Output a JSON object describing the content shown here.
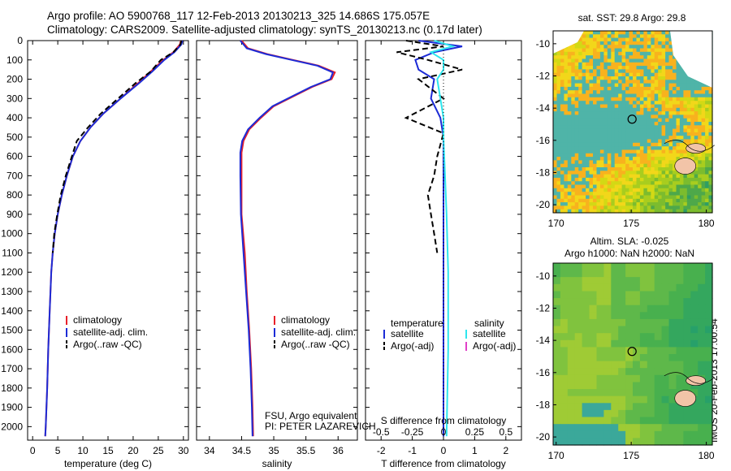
{
  "header": {
    "line1": "Argo profile: AO 5900768_117 12-Feb-2013 20130213_325 14.686S 175.057E",
    "line2": "Climatology: CARS2009. Satellite-adjusted climatology: synTS_20130213.nc (0.17d later)"
  },
  "timestamp": "IMOS 20-Feb-2013 17:00:54",
  "colors": {
    "climatology": "#e8202a",
    "satellite": "#1c2bd6",
    "argo": "#000000",
    "sat_salinity": "#2ee6ee",
    "argo_salinity": "#e040c8"
  },
  "chart_data": [
    {
      "type": "line",
      "panel": "temperature",
      "xlabel": "temperature (deg C)",
      "ylabel": "",
      "xlim": [
        -1,
        31
      ],
      "ylim": [
        2070,
        0
      ],
      "xticks": [
        0,
        5,
        10,
        15,
        20,
        25,
        30
      ],
      "yticks": [
        0,
        100,
        200,
        300,
        400,
        500,
        600,
        700,
        800,
        900,
        1000,
        1100,
        1200,
        1300,
        1400,
        1500,
        1600,
        1700,
        1800,
        1900,
        2000
      ],
      "legend": [
        "climatology",
        "satellite-adj. clim.",
        "Argo(..raw -QC)"
      ],
      "series": [
        {
          "name": "climatology",
          "style": "solid",
          "color": "#e8202a",
          "points": [
            [
              29.5,
              0
            ],
            [
              29.3,
              20
            ],
            [
              28,
              60
            ],
            [
              26,
              100
            ],
            [
              23.5,
              160
            ],
            [
              21,
              220
            ],
            [
              17.5,
              300
            ],
            [
              14,
              380
            ],
            [
              11.5,
              450
            ],
            [
              9.5,
              520
            ],
            [
              8,
              600
            ],
            [
              6.8,
              700
            ],
            [
              5.8,
              800
            ],
            [
              5,
              900
            ],
            [
              4.4,
              1000
            ],
            [
              4,
              1100
            ],
            [
              3.7,
              1200
            ],
            [
              3.4,
              1400
            ],
            [
              3.1,
              1600
            ],
            [
              2.9,
              1800
            ],
            [
              2.6,
              2000
            ],
            [
              2.5,
              2050
            ]
          ]
        },
        {
          "name": "satellite-adj. clim.",
          "style": "solid",
          "color": "#1c2bd6",
          "points": [
            [
              29.8,
              0
            ],
            [
              29.6,
              20
            ],
            [
              28.2,
              60
            ],
            [
              26.2,
              100
            ],
            [
              23.8,
              160
            ],
            [
              21.2,
              220
            ],
            [
              17.5,
              300
            ],
            [
              14,
              380
            ],
            [
              11.5,
              450
            ],
            [
              9.5,
              520
            ],
            [
              8,
              600
            ],
            [
              6.8,
              700
            ],
            [
              5.8,
              800
            ],
            [
              5,
              900
            ],
            [
              4.4,
              1000
            ],
            [
              4,
              1100
            ],
            [
              3.7,
              1200
            ],
            [
              3.4,
              1400
            ],
            [
              3.1,
              1600
            ],
            [
              2.9,
              1800
            ],
            [
              2.6,
              2000
            ],
            [
              2.5,
              2050
            ]
          ]
        },
        {
          "name": "Argo(..raw -QC)",
          "style": "dash",
          "color": "#000000",
          "points": [
            [
              29.6,
              0
            ],
            [
              29.4,
              20
            ],
            [
              28,
              60
            ],
            [
              25.5,
              100
            ],
            [
              23.5,
              160
            ],
            [
              20.5,
              220
            ],
            [
              17,
              300
            ],
            [
              13.5,
              380
            ],
            [
              11,
              450
            ],
            [
              8.8,
              520
            ],
            [
              7.8,
              600
            ],
            [
              6.6,
              700
            ],
            [
              5.6,
              800
            ],
            [
              4.9,
              900
            ],
            [
              4.3,
              1000
            ],
            [
              4,
              1100
            ]
          ]
        }
      ]
    },
    {
      "type": "line",
      "panel": "salinity",
      "xlabel": "salinity",
      "ylabel": "",
      "xlim": [
        33.8,
        36.3
      ],
      "ylim": [
        2070,
        0
      ],
      "xticks": [
        34,
        34.5,
        35,
        35.5,
        36
      ],
      "legend": [
        "climatology",
        "satellite-adj. clim.",
        "Argo(..raw -QC)"
      ],
      "annotation": [
        "FSU, Argo equivalent",
        "PI: PETER LAZAREVICH"
      ],
      "series": [
        {
          "name": "climatology",
          "style": "solid",
          "color": "#e8202a",
          "points": [
            [
              34.5,
              0
            ],
            [
              34.6,
              40
            ],
            [
              34.9,
              70
            ],
            [
              35.3,
              100
            ],
            [
              35.7,
              130
            ],
            [
              35.95,
              165
            ],
            [
              35.9,
              200
            ],
            [
              35.6,
              240
            ],
            [
              35.3,
              290
            ],
            [
              35,
              340
            ],
            [
              34.8,
              400
            ],
            [
              34.62,
              460
            ],
            [
              34.53,
              520
            ],
            [
              34.5,
              580
            ],
            [
              34.5,
              700
            ],
            [
              34.5,
              900
            ],
            [
              34.55,
              1100
            ],
            [
              34.58,
              1300
            ],
            [
              34.62,
              1500
            ],
            [
              34.65,
              1700
            ],
            [
              34.67,
              1900
            ],
            [
              34.68,
              2050
            ]
          ]
        },
        {
          "name": "satellite-adj. clim.",
          "style": "solid",
          "color": "#1c2bd6",
          "points": [
            [
              34.48,
              0
            ],
            [
              34.58,
              40
            ],
            [
              34.88,
              70
            ],
            [
              35.28,
              100
            ],
            [
              35.68,
              130
            ],
            [
              35.92,
              165
            ],
            [
              35.88,
              200
            ],
            [
              35.58,
              240
            ],
            [
              35.28,
              290
            ],
            [
              34.98,
              340
            ],
            [
              34.78,
              400
            ],
            [
              34.6,
              460
            ],
            [
              34.51,
              520
            ],
            [
              34.48,
              580
            ],
            [
              34.48,
              700
            ],
            [
              34.49,
              900
            ],
            [
              34.53,
              1100
            ],
            [
              34.57,
              1300
            ],
            [
              34.61,
              1500
            ],
            [
              34.64,
              1700
            ],
            [
              34.66,
              1900
            ],
            [
              34.67,
              2050
            ]
          ]
        }
      ]
    },
    {
      "type": "line",
      "panel": "difference",
      "xlabel": "T difference from climatology",
      "xlabel_top": "S difference from climatology",
      "xlim": [
        -2.5,
        2.5
      ],
      "ylim": [
        2070,
        0
      ],
      "xticks": [
        -2,
        -1,
        0,
        1,
        2
      ],
      "xticks_top_labels": [
        "-0.5",
        "-0.25",
        "0",
        "0.25",
        "0.5"
      ],
      "legend_titles": [
        "temperature",
        "salinity"
      ],
      "legend": [
        "satellite",
        "Argo(-adj)",
        "satellite",
        "Argo(-adj)"
      ],
      "series": [
        {
          "name": "T satellite",
          "style": "solid",
          "color": "#1c2bd6",
          "points": [
            [
              -0.8,
              0
            ],
            [
              0.6,
              30
            ],
            [
              -0.3,
              60
            ],
            [
              -0.9,
              100
            ],
            [
              -0.8,
              150
            ],
            [
              -0.3,
              200
            ],
            [
              -0.4,
              300
            ],
            [
              -0.1,
              400
            ],
            [
              0,
              500
            ],
            [
              0,
              700
            ],
            [
              0,
              1000
            ],
            [
              0,
              1500
            ],
            [
              0,
              2050
            ]
          ]
        },
        {
          "name": "T Argo(-adj)",
          "style": "dash",
          "color": "#000000",
          "points": [
            [
              -1.2,
              0
            ],
            [
              0,
              30
            ],
            [
              -1.5,
              60
            ],
            [
              -0.5,
              100
            ],
            [
              0.6,
              150
            ],
            [
              -0.8,
              200
            ],
            [
              0,
              300
            ],
            [
              -1.2,
              400
            ],
            [
              0,
              480
            ],
            [
              -0.2,
              600
            ],
            [
              -0.3,
              700
            ],
            [
              -0.5,
              800
            ],
            [
              -0.4,
              900
            ],
            [
              -0.3,
              1000
            ],
            [
              -0.2,
              1100
            ]
          ]
        },
        {
          "name": "S satellite",
          "style": "solid",
          "color": "#2ee6ee",
          "points": [
            [
              -0.3,
              0
            ],
            [
              0.3,
              30
            ],
            [
              -0.4,
              60
            ],
            [
              0,
              100
            ],
            [
              0,
              150
            ],
            [
              -0.2,
              200
            ],
            [
              -0.1,
              300
            ],
            [
              0,
              400
            ],
            [
              0,
              500
            ],
            [
              0.05,
              700
            ],
            [
              0.1,
              900
            ],
            [
              0.15,
              1200
            ],
            [
              0.15,
              1600
            ],
            [
              0.1,
              2050
            ]
          ]
        }
      ]
    },
    {
      "type": "heatmap",
      "panel": "sst-map",
      "title": "sat. SST: 29.8 Argo: 29.8",
      "xticks": [
        170,
        175,
        180
      ],
      "yticks": [
        -10,
        -12,
        -14,
        -16,
        -18,
        -20
      ],
      "xlim": [
        169.8,
        180.4
      ],
      "ylim": [
        -20.5,
        -9.2
      ]
    },
    {
      "type": "heatmap",
      "panel": "sla-map",
      "title": "Altim. SLA: -0.025",
      "subtitle": "Argo h1000: NaN h2000: NaN",
      "xticks": [
        170,
        175,
        180
      ],
      "yticks": [
        -10,
        -12,
        -14,
        -16,
        -18,
        -20
      ],
      "xlim": [
        169.8,
        180.4
      ],
      "ylim": [
        -20.5,
        -9.2
      ]
    }
  ]
}
